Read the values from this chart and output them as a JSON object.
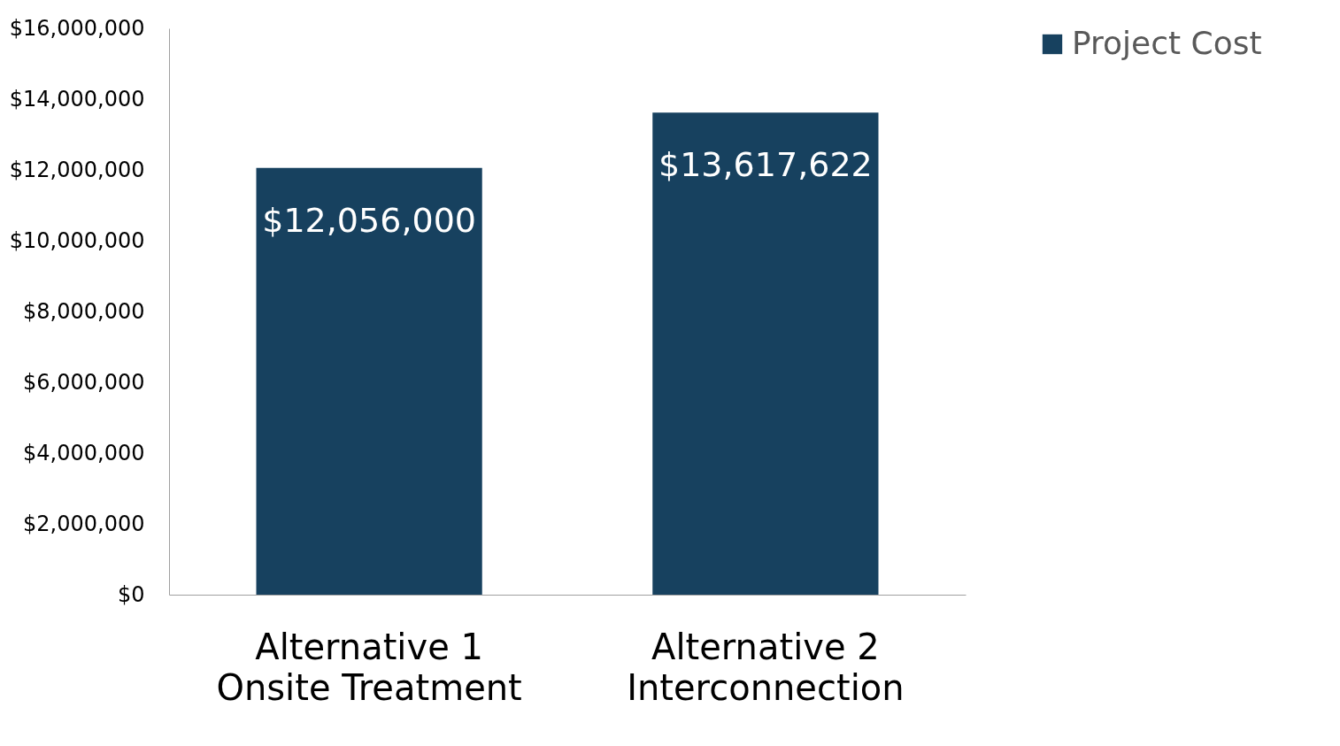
{
  "chart_data": {
    "type": "bar",
    "categories": [
      "Alternative 1\nOnsite Treatment",
      "Alternative 2\nInterconnection"
    ],
    "series": [
      {
        "name": "Project Cost",
        "color": "#17415f",
        "values": [
          12056000,
          13617622
        ]
      }
    ],
    "value_labels": [
      "$12,056,000",
      "$13,617,622"
    ],
    "ylim": [
      0,
      16000000
    ],
    "yticks": [
      {
        "value": 0,
        "label": "$0"
      },
      {
        "value": 2000000,
        "label": "$2,000,000"
      },
      {
        "value": 4000000,
        "label": "$4,000,000"
      },
      {
        "value": 6000000,
        "label": "$6,000,000"
      },
      {
        "value": 8000000,
        "label": "$8,000,000"
      },
      {
        "value": 10000000,
        "label": "$10,000,000"
      },
      {
        "value": 12000000,
        "label": "$12,000,000"
      },
      {
        "value": 14000000,
        "label": "$14,000,000"
      },
      {
        "value": 16000000,
        "label": "$16,000,000"
      }
    ],
    "grid": false,
    "legend": "top right"
  }
}
